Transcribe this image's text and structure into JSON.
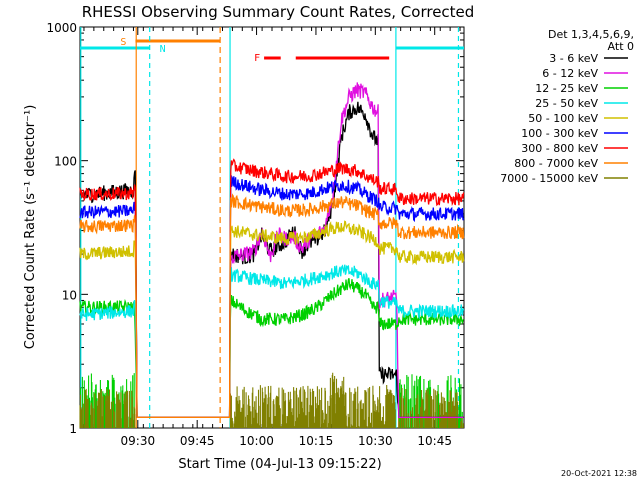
{
  "chart_data": {
    "type": "line",
    "title": "RHESSI Observing Summary Count Rates, Corrected",
    "xlabel": "Start Time (04-Jul-13 09:15:22)",
    "ylabel": "Corrected Count Rate (s⁻¹ detector⁻¹)",
    "ylog": true,
    "ylim": [
      1,
      1000
    ],
    "xlim_minutes": [
      0,
      97
    ],
    "xticks": [
      {
        "m": 14.6,
        "label": "09:30"
      },
      {
        "m": 29.6,
        "label": "09:45"
      },
      {
        "m": 44.6,
        "label": "10:00"
      },
      {
        "m": 59.6,
        "label": "10:15"
      },
      {
        "m": 74.6,
        "label": "10:30"
      },
      {
        "m": 89.6,
        "label": "10:45"
      }
    ],
    "yticks": [
      {
        "v": 1,
        "label": "1"
      },
      {
        "v": 10,
        "label": "10"
      },
      {
        "v": 100,
        "label": "100"
      },
      {
        "v": 1000,
        "label": "1000"
      }
    ],
    "legend_title": [
      "Det 1,3,4,5,6,9,",
      "Att 0"
    ],
    "legend_position": "right",
    "grid": false,
    "series": [
      {
        "name": "3 - 6 keV",
        "color": "#000000",
        "points": [
          [
            0,
            55
          ],
          [
            13.5,
            60
          ],
          [
            14.0,
            90
          ],
          [
            14.4,
            1.2
          ],
          [
            37.8,
            1.2
          ],
          [
            38.0,
            20
          ],
          [
            42,
            19
          ],
          [
            44,
            20
          ],
          [
            46,
            28
          ],
          [
            48,
            21
          ],
          [
            52,
            25
          ],
          [
            54,
            30
          ],
          [
            56,
            21
          ],
          [
            58,
            24
          ],
          [
            60,
            26
          ],
          [
            62,
            30
          ],
          [
            64,
            50
          ],
          [
            66,
            150
          ],
          [
            68,
            230
          ],
          [
            70,
            250
          ],
          [
            72,
            225
          ],
          [
            74,
            150
          ],
          [
            75.3,
            140
          ],
          [
            75.6,
            2.5
          ],
          [
            78,
            2.5
          ],
          [
            80,
            2.5
          ],
          [
            80.5,
            1.2
          ],
          [
            97,
            1.2
          ]
        ]
      },
      {
        "name": "6 - 12 keV",
        "color": "#e010e0",
        "points": [
          [
            37.8,
            1.2
          ],
          [
            38.0,
            19
          ],
          [
            42,
            20
          ],
          [
            44,
            21
          ],
          [
            46,
            30
          ],
          [
            48,
            19
          ],
          [
            50,
            28
          ],
          [
            52,
            26
          ],
          [
            54,
            27
          ],
          [
            56,
            22
          ],
          [
            58,
            26
          ],
          [
            60,
            28
          ],
          [
            62,
            32
          ],
          [
            64,
            60
          ],
          [
            66,
            200
          ],
          [
            68,
            300
          ],
          [
            70,
            340
          ],
          [
            72,
            320
          ],
          [
            74,
            250
          ],
          [
            75.3,
            230
          ],
          [
            75.6,
            9
          ],
          [
            80,
            9.5
          ],
          [
            80.5,
            1.2
          ],
          [
            97,
            1.2
          ]
        ]
      },
      {
        "name": "12 - 25 keV",
        "color": "#00d000",
        "points": [
          [
            0,
            8
          ],
          [
            13.8,
            8
          ],
          [
            14.4,
            1.2
          ],
          [
            37.8,
            1.2
          ],
          [
            38.0,
            9
          ],
          [
            42,
            7.5
          ],
          [
            46,
            6.5
          ],
          [
            52,
            6.5
          ],
          [
            56,
            7
          ],
          [
            60,
            8
          ],
          [
            64,
            10
          ],
          [
            66,
            11
          ],
          [
            68,
            12
          ],
          [
            70,
            11
          ],
          [
            72,
            10
          ],
          [
            74,
            8
          ],
          [
            75.3,
            8
          ],
          [
            75.6,
            6
          ],
          [
            80,
            6
          ],
          [
            80.5,
            6.5
          ],
          [
            97,
            6.5
          ]
        ]
      },
      {
        "name": "25 - 50 keV",
        "color": "#00e8e8",
        "points": [
          [
            0,
            7
          ],
          [
            13.5,
            7.5
          ],
          [
            14.0,
            9
          ],
          [
            14.4,
            1.2
          ],
          [
            37.8,
            1.2
          ],
          [
            38.0,
            14
          ],
          [
            44,
            13
          ],
          [
            52,
            12
          ],
          [
            58,
            13
          ],
          [
            62,
            14
          ],
          [
            66,
            15
          ],
          [
            70,
            14.5
          ],
          [
            74,
            12
          ],
          [
            75.3,
            12
          ],
          [
            75.6,
            9
          ],
          [
            80,
            8.5
          ],
          [
            80.5,
            7.5
          ],
          [
            97,
            7.5
          ]
        ]
      },
      {
        "name": "50 - 100 keV",
        "color": "#d0c000",
        "points": [
          [
            0,
            20
          ],
          [
            13.5,
            21
          ],
          [
            14.0,
            27
          ],
          [
            14.4,
            1.2
          ],
          [
            37.8,
            1.2
          ],
          [
            38.0,
            30
          ],
          [
            44,
            28
          ],
          [
            52,
            26
          ],
          [
            58,
            27
          ],
          [
            62,
            30
          ],
          [
            66,
            32
          ],
          [
            70,
            30
          ],
          [
            74,
            26
          ],
          [
            75.3,
            25
          ],
          [
            75.6,
            22
          ],
          [
            80,
            22
          ],
          [
            80.5,
            19
          ],
          [
            97,
            19
          ]
        ]
      },
      {
        "name": "100 - 300 keV",
        "color": "#0000ff",
        "points": [
          [
            0,
            41
          ],
          [
            13.5,
            42
          ],
          [
            14.0,
            50
          ],
          [
            14.4,
            1.2
          ],
          [
            37.8,
            1.2
          ],
          [
            38.0,
            70
          ],
          [
            44,
            62
          ],
          [
            52,
            56
          ],
          [
            58,
            57
          ],
          [
            62,
            62
          ],
          [
            66,
            66
          ],
          [
            70,
            62
          ],
          [
            74,
            52
          ],
          [
            75.3,
            50
          ],
          [
            75.6,
            45
          ],
          [
            80,
            44
          ],
          [
            80.5,
            40
          ],
          [
            97,
            40
          ]
        ]
      },
      {
        "name": "300 - 800 keV",
        "color": "#ff0000",
        "points": [
          [
            0,
            56
          ],
          [
            13.5,
            57
          ],
          [
            14.0,
            67
          ],
          [
            14.4,
            1.2
          ],
          [
            37.8,
            1.2
          ],
          [
            38.0,
            92
          ],
          [
            44,
            84
          ],
          [
            52,
            76
          ],
          [
            58,
            77
          ],
          [
            62,
            82
          ],
          [
            66,
            88
          ],
          [
            70,
            84
          ],
          [
            74,
            72
          ],
          [
            75.3,
            70
          ],
          [
            75.6,
            62
          ],
          [
            80,
            61
          ],
          [
            80.5,
            52
          ],
          [
            97,
            52
          ]
        ]
      },
      {
        "name": "800 - 7000 keV",
        "color": "#ff8000",
        "points": [
          [
            0,
            32
          ],
          [
            13.5,
            33
          ],
          [
            14.0,
            38
          ],
          [
            14.4,
            1.2
          ],
          [
            37.8,
            1.2
          ],
          [
            38.0,
            50
          ],
          [
            44,
            46
          ],
          [
            52,
            42
          ],
          [
            58,
            43
          ],
          [
            62,
            46
          ],
          [
            66,
            49
          ],
          [
            70,
            46
          ],
          [
            74,
            40
          ],
          [
            75.3,
            39
          ],
          [
            75.6,
            34
          ],
          [
            80,
            34
          ],
          [
            80.5,
            29
          ],
          [
            97,
            29
          ]
        ]
      },
      {
        "name": "7000 - 15000 keV",
        "color": "#808000",
        "points": [
          [
            0,
            1.8
          ],
          [
            13.5,
            1.6
          ],
          [
            14.4,
            1.0
          ],
          [
            37.8,
            1.0
          ],
          [
            38.0,
            1.8
          ],
          [
            97,
            1.8
          ]
        ]
      }
    ],
    "annotations": [
      {
        "text": "S",
        "color": "#ff8000"
      },
      {
        "text": "N",
        "color": "#00e8e8"
      },
      {
        "text": "F",
        "color": "#ff0000"
      }
    ]
  },
  "footer": {
    "timestamp": "20-Oct-2021 12:38"
  }
}
